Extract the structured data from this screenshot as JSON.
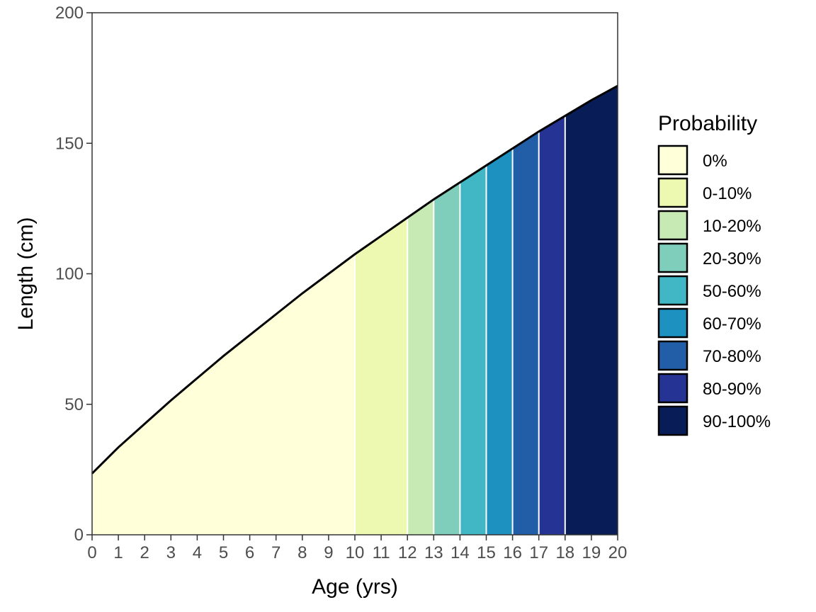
{
  "chart_data": {
    "type": "area",
    "title": "",
    "xlabel": "Age (yrs)",
    "ylabel": "Length (cm)",
    "xlim": [
      0,
      20
    ],
    "ylim": [
      0,
      200
    ],
    "x_ticks": [
      0,
      1,
      2,
      3,
      4,
      5,
      6,
      7,
      8,
      9,
      10,
      11,
      12,
      13,
      14,
      15,
      16,
      17,
      18,
      19,
      20
    ],
    "y_ticks": [
      0,
      50,
      100,
      150,
      200
    ],
    "grid": false,
    "legend_position": "right",
    "growth_curve": {
      "x": [
        0,
        1,
        2,
        3,
        4,
        5,
        6,
        7,
        8,
        9,
        10,
        11,
        12,
        13,
        14,
        15,
        16,
        17,
        18,
        19,
        20
      ],
      "y": [
        23.5,
        33.5,
        42.5,
        51.5,
        60,
        68.5,
        76.5,
        84.5,
        92.5,
        100,
        107.5,
        114.5,
        121.5,
        128.5,
        135,
        141.5,
        148,
        154.5,
        160.5,
        166.5,
        172
      ]
    },
    "legend": {
      "title": "Probability",
      "items": [
        {
          "label": "0%",
          "color": "#FFFFD9"
        },
        {
          "label": "0-10%",
          "color": "#EDF8B1"
        },
        {
          "label": "10-20%",
          "color": "#C7E9B4"
        },
        {
          "label": "20-30%",
          "color": "#7FCDBB"
        },
        {
          "label": "50-60%",
          "color": "#41B6C4"
        },
        {
          "label": "60-70%",
          "color": "#1D91C0"
        },
        {
          "label": "70-80%",
          "color": "#225EA8"
        },
        {
          "label": "80-90%",
          "color": "#253494"
        },
        {
          "label": "90-100%",
          "color": "#081D58"
        }
      ]
    },
    "bands": [
      {
        "from": 0,
        "to": 10,
        "category": "0%"
      },
      {
        "from": 10,
        "to": 12,
        "category": "0-10%"
      },
      {
        "from": 12,
        "to": 13,
        "category": "10-20%"
      },
      {
        "from": 13,
        "to": 14,
        "category": "20-30%"
      },
      {
        "from": 14,
        "to": 15,
        "category": "50-60%"
      },
      {
        "from": 15,
        "to": 16,
        "category": "60-70%"
      },
      {
        "from": 16,
        "to": 17,
        "category": "70-80%"
      },
      {
        "from": 17,
        "to": 18,
        "category": "80-90%"
      },
      {
        "from": 18,
        "to": 20,
        "category": "90-100%"
      }
    ]
  }
}
